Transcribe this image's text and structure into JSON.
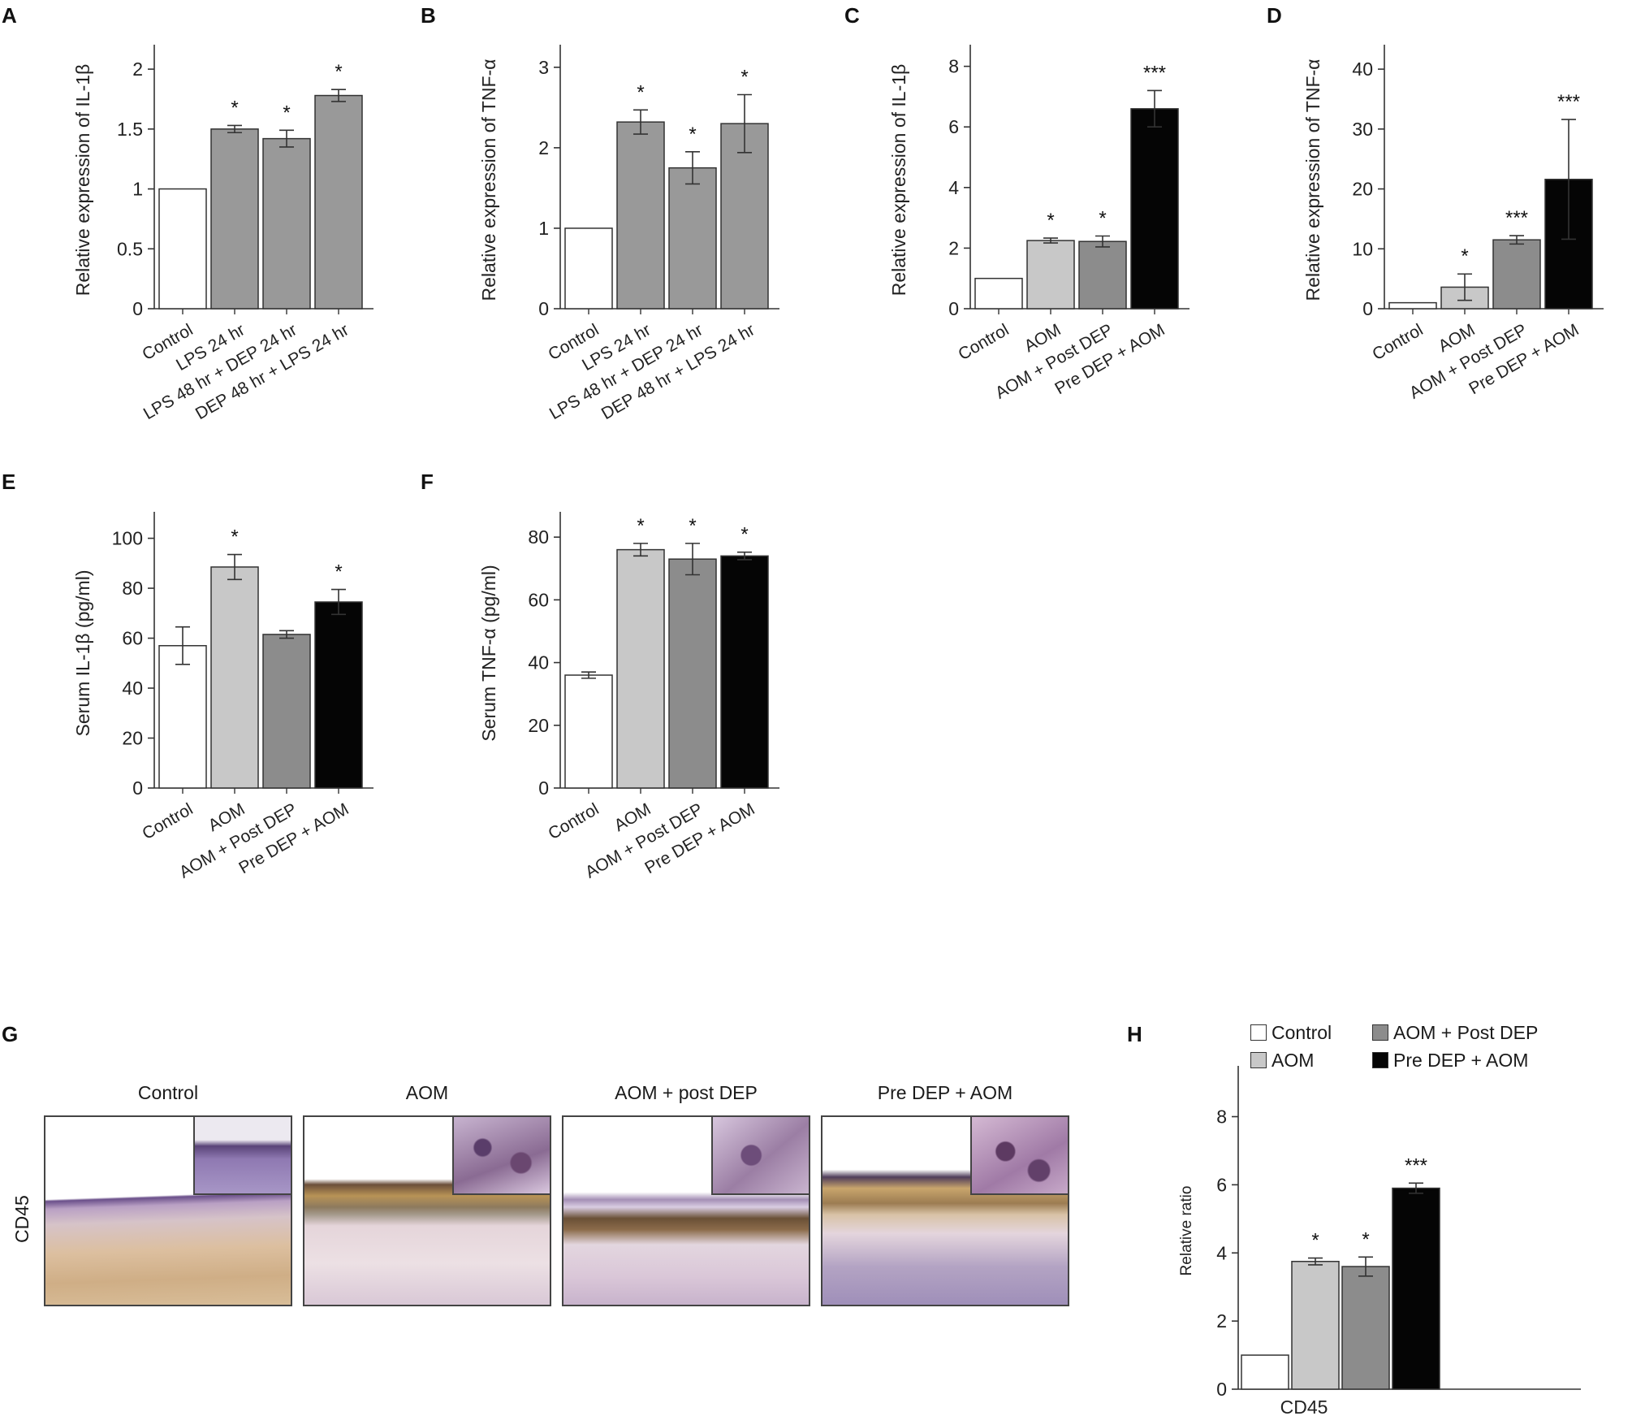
{
  "panels": [
    "A",
    "B",
    "C",
    "D",
    "E",
    "F",
    "G",
    "H"
  ],
  "chart_data": [
    {
      "panel": "A",
      "type": "bar",
      "ylabel": "Relative expression of IL-1β",
      "categories": [
        "Control",
        "LPS 24 hr",
        "LPS 48 hr + DEP 24 hr",
        "DEP 48 hr + LPS 24 hr"
      ],
      "values": [
        1.0,
        1.5,
        1.42,
        1.78
      ],
      "errors": [
        0,
        0.03,
        0.07,
        0.05
      ],
      "significance": [
        "",
        "*",
        "*",
        "*"
      ],
      "yticks": [
        0,
        0.5,
        1,
        1.5,
        2
      ],
      "ytick_labels": [
        "0",
        "0.5",
        "1",
        "1.5",
        "2"
      ],
      "ylim": [
        0,
        2.15
      ]
    },
    {
      "panel": "B",
      "type": "bar",
      "ylabel": "Relative expression of TNF-α",
      "categories": [
        "Control",
        "LPS 24 hr",
        "LPS 48 hr + DEP 24 hr",
        "DEP 48 hr + LPS 24 hr"
      ],
      "values": [
        1.0,
        2.32,
        1.75,
        2.3
      ],
      "errors": [
        0,
        0.15,
        0.2,
        0.36
      ],
      "significance": [
        "",
        "*",
        "*",
        "*"
      ],
      "yticks": [
        0,
        1,
        2,
        3
      ],
      "ytick_labels": [
        "0",
        "1",
        "2",
        "3"
      ],
      "ylim": [
        0,
        3.2
      ]
    },
    {
      "panel": "C",
      "type": "bar",
      "ylabel": "Relative expression of IL-1β",
      "categories": [
        "Control",
        "AOM",
        "AOM + Post DEP",
        "Pre DEP + AOM"
      ],
      "values": [
        1.0,
        2.25,
        2.22,
        6.6
      ],
      "errors": [
        0,
        0.08,
        0.18,
        0.6
      ],
      "significance": [
        "",
        "*",
        "*",
        "***"
      ],
      "yticks": [
        0,
        2,
        4,
        6,
        8
      ],
      "ytick_labels": [
        "0",
        "2",
        "4",
        "6",
        "8"
      ],
      "ylim": [
        0,
        8.5
      ]
    },
    {
      "panel": "D",
      "type": "bar",
      "ylabel": "Relative expression of TNF-α",
      "categories": [
        "Control",
        "AOM",
        "AOM + Post DEP",
        "Pre DEP + AOM"
      ],
      "values": [
        1.0,
        3.6,
        11.5,
        21.6
      ],
      "errors": [
        0,
        2.2,
        0.7,
        10.0
      ],
      "significance": [
        "",
        "*",
        "***",
        "***"
      ],
      "yticks": [
        0,
        10,
        20,
        30,
        40
      ],
      "ytick_labels": [
        "0",
        "10",
        "20",
        "30",
        "40"
      ],
      "ylim": [
        0,
        43
      ]
    },
    {
      "panel": "E",
      "type": "bar",
      "ylabel": "Serum IL-1β (pg/ml)",
      "categories": [
        "Control",
        "AOM",
        "AOM + Post DEP",
        "Pre DEP + AOM"
      ],
      "values": [
        57,
        88.5,
        61.5,
        74.5
      ],
      "errors": [
        7.5,
        5,
        1.5,
        5
      ],
      "significance": [
        "",
        "*",
        "",
        "*"
      ],
      "yticks": [
        0,
        20,
        40,
        60,
        80,
        100
      ],
      "ytick_labels": [
        "0",
        "20",
        "40",
        "60",
        "80",
        "100"
      ],
      "ylim": [
        0,
        108
      ]
    },
    {
      "panel": "F",
      "type": "bar",
      "ylabel": "Serum  TNF-α (pg/ml)",
      "categories": [
        "Control",
        "AOM",
        "AOM + Post DEP",
        "Pre DEP + AOM"
      ],
      "values": [
        36,
        76,
        73,
        74
      ],
      "errors": [
        1,
        2,
        5,
        1.2
      ],
      "significance": [
        "",
        "*",
        "*",
        "*"
      ],
      "yticks": [
        0,
        20,
        40,
        60,
        80
      ],
      "ytick_labels": [
        "0",
        "20",
        "40",
        "60",
        "80"
      ],
      "ylim": [
        0,
        86
      ]
    },
    {
      "panel": "H",
      "type": "bar",
      "ylabel": "Relative ratio",
      "xlabel": "CD45",
      "categories": [
        "Control",
        "AOM",
        "AOM + Post DEP",
        "Pre DEP + AOM"
      ],
      "values": [
        1.0,
        3.75,
        3.6,
        5.9
      ],
      "errors": [
        0,
        0.1,
        0.28,
        0.15
      ],
      "significance": [
        "",
        "*",
        "*",
        "***"
      ],
      "yticks": [
        0,
        2,
        4,
        6,
        8
      ],
      "ytick_labels": [
        "0",
        "2",
        "4",
        "6",
        "8"
      ],
      "ylim": [
        0,
        9.3
      ],
      "legend": [
        "Control",
        "AOM",
        "AOM + Post DEP",
        "Pre DEP + AOM"
      ],
      "legend_position": "top"
    }
  ],
  "colors": {
    "Control": "#ffffff",
    "AOM": "#c8c8c8",
    "AOM + Post DEP": "#8c8c8c",
    "Pre DEP + AOM": "#050505"
  },
  "histology": {
    "row_label": "CD45",
    "titles": [
      "Control",
      "AOM",
      "AOM + post DEP",
      "Pre DEP + AOM"
    ]
  }
}
